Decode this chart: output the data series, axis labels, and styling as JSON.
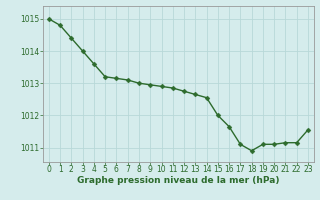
{
  "x": [
    0,
    1,
    2,
    3,
    4,
    5,
    6,
    7,
    8,
    9,
    10,
    11,
    12,
    13,
    14,
    15,
    16,
    17,
    18,
    19,
    20,
    21,
    22,
    23
  ],
  "y": [
    1015.0,
    1014.8,
    1014.4,
    1014.0,
    1013.6,
    1013.2,
    1013.15,
    1013.1,
    1013.0,
    1012.95,
    1012.9,
    1012.85,
    1012.75,
    1012.65,
    1012.55,
    1012.0,
    1011.65,
    1011.1,
    1010.9,
    1011.1,
    1011.1,
    1011.15,
    1011.15,
    1011.55
  ],
  "line_color": "#2d6b2d",
  "marker": "D",
  "marker_size": 2.5,
  "line_width": 1.0,
  "bg_color": "#d5ecec",
  "grid_color": "#b8d8d8",
  "xlabel": "Graphe pression niveau de la mer (hPa)",
  "xlabel_color": "#2d6b2d",
  "xlabel_fontsize": 6.5,
  "tick_color": "#2d6b2d",
  "tick_fontsize": 5.5,
  "ylim": [
    1010.55,
    1015.4
  ],
  "yticks": [
    1011,
    1012,
    1013,
    1014,
    1015
  ],
  "xlim": [
    -0.5,
    23.5
  ],
  "xticks": [
    0,
    1,
    2,
    3,
    4,
    5,
    6,
    7,
    8,
    9,
    10,
    11,
    12,
    13,
    14,
    15,
    16,
    17,
    18,
    19,
    20,
    21,
    22,
    23
  ]
}
